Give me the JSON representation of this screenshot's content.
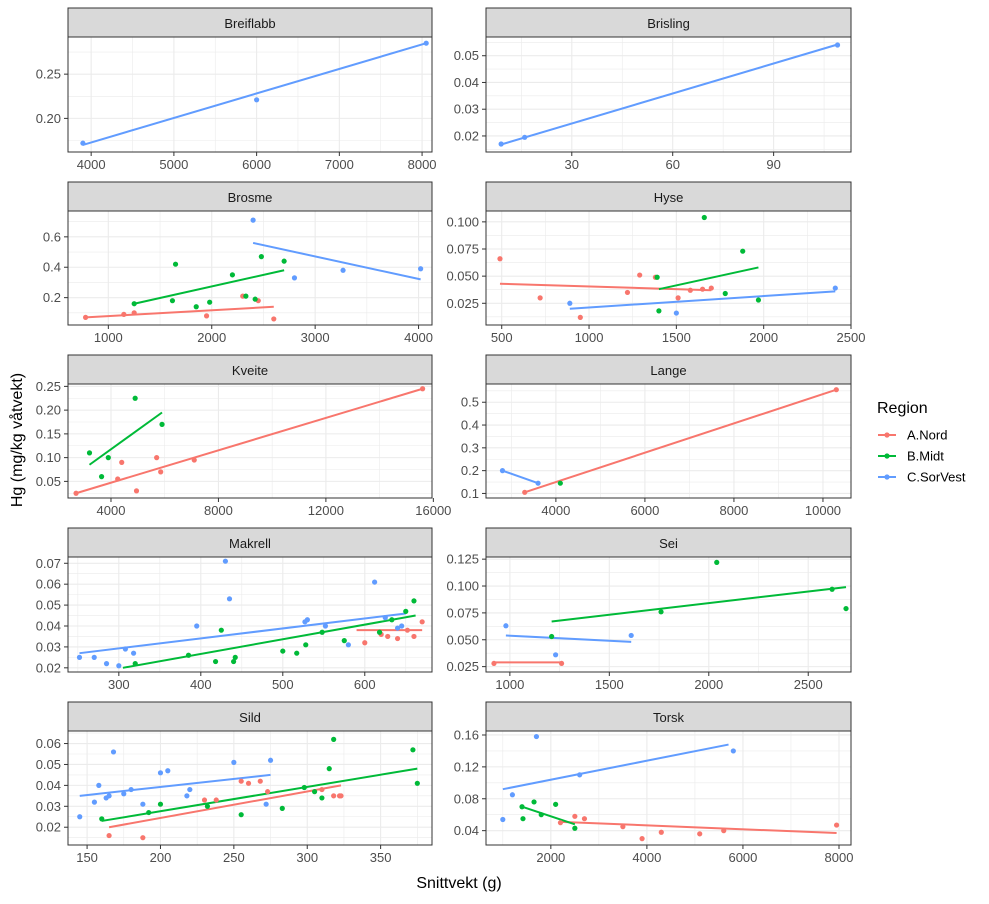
{
  "figure": {
    "xlabel": "Snittvekt (g)",
    "ylabel": "Hg (mg/kg våtvekt)"
  },
  "legend": {
    "title": "Region",
    "items": [
      {
        "label": "A.Nord",
        "color": "#F8766D"
      },
      {
        "label": "B.Midt",
        "color": "#00BA38"
      },
      {
        "label": "C.SorVest",
        "color": "#619CFF"
      }
    ]
  },
  "chart_data": [
    {
      "type": "scatter",
      "title": "Breiflabb",
      "xlim": [
        3720,
        8120
      ],
      "ylim": [
        0.162,
        0.292
      ],
      "xticks": [
        4000,
        5000,
        6000,
        7000,
        8000
      ],
      "yticks": [
        0.2,
        0.25
      ],
      "ytick_labels": [
        "0.20",
        "0.25"
      ],
      "series": [
        {
          "name": "C.SorVest",
          "x": [
            3900,
            6000,
            8050
          ],
          "y": [
            0.172,
            0.221,
            0.285
          ],
          "fit": [
            [
              3900,
              0.17
            ],
            [
              8050,
              0.285
            ]
          ]
        }
      ]
    },
    {
      "type": "scatter",
      "title": "Brisling",
      "xlim": [
        4.5,
        113
      ],
      "ylim": [
        0.014,
        0.057
      ],
      "xticks": [
        30,
        60,
        90
      ],
      "yticks": [
        0.02,
        0.03,
        0.04,
        0.05
      ],
      "ytick_labels": [
        "0.02",
        "0.03",
        "0.04",
        "0.05"
      ],
      "series": [
        {
          "name": "C.SorVest",
          "x": [
            9,
            16,
            109
          ],
          "y": [
            0.017,
            0.0195,
            0.054
          ],
          "fit": [
            [
              9,
              0.0168
            ],
            [
              109,
              0.0542
            ]
          ]
        }
      ]
    },
    {
      "type": "scatter",
      "title": "Brosme",
      "xlim": [
        610,
        4130
      ],
      "ylim": [
        0.02,
        0.77
      ],
      "xticks": [
        1000,
        2000,
        3000,
        4000
      ],
      "yticks": [
        0.2,
        0.4,
        0.6
      ],
      "ytick_labels": [
        "0.2",
        "0.4",
        "0.6"
      ],
      "series": [
        {
          "name": "A.Nord",
          "x": [
            780,
            1150,
            1250,
            1950,
            2300,
            2450,
            2600
          ],
          "y": [
            0.07,
            0.09,
            0.1,
            0.08,
            0.21,
            0.18,
            0.06
          ],
          "fit": [
            [
              780,
              0.07
            ],
            [
              2600,
              0.14
            ]
          ]
        },
        {
          "name": "B.Midt",
          "x": [
            1250,
            1620,
            1650,
            1850,
            1980,
            2200,
            2330,
            2420,
            2480,
            2700
          ],
          "y": [
            0.16,
            0.18,
            0.42,
            0.14,
            0.17,
            0.35,
            0.21,
            0.19,
            0.47,
            0.44
          ],
          "fit": [
            [
              1250,
              0.16
            ],
            [
              2700,
              0.38
            ]
          ]
        },
        {
          "name": "C.SorVest",
          "x": [
            2400,
            2800,
            3270,
            4020
          ],
          "y": [
            0.71,
            0.33,
            0.38,
            0.39
          ],
          "fit": [
            [
              2400,
              0.56
            ],
            [
              4020,
              0.32
            ]
          ]
        }
      ]
    },
    {
      "type": "scatter",
      "title": "Hyse",
      "xlim": [
        410,
        2500
      ],
      "ylim": [
        0.005,
        0.11
      ],
      "xticks": [
        500,
        1000,
        1500,
        2000,
        2500
      ],
      "yticks": [
        0.025,
        0.05,
        0.075,
        0.1
      ],
      "ytick_labels": [
        "0.025",
        "0.050",
        "0.075",
        "0.100"
      ],
      "series": [
        {
          "name": "A.Nord",
          "x": [
            490,
            720,
            950,
            1220,
            1290,
            1380,
            1510,
            1580,
            1650,
            1700
          ],
          "y": [
            0.066,
            0.03,
            0.012,
            0.035,
            0.051,
            0.049,
            0.03,
            0.037,
            0.038,
            0.039
          ],
          "fit": [
            [
              490,
              0.043
            ],
            [
              1700,
              0.037
            ]
          ]
        },
        {
          "name": "B.Midt",
          "x": [
            1390,
            1400,
            1660,
            1780,
            1880,
            1970
          ],
          "y": [
            0.049,
            0.018,
            0.104,
            0.034,
            0.073,
            0.028
          ],
          "fit": [
            [
              1400,
              0.038
            ],
            [
              1970,
              0.058
            ]
          ]
        },
        {
          "name": "C.SorVest",
          "x": [
            890,
            1500,
            2410
          ],
          "y": [
            0.025,
            0.016,
            0.039
          ],
          "fit": [
            [
              890,
              0.02
            ],
            [
              2410,
              0.036
            ]
          ]
        }
      ]
    },
    {
      "type": "scatter",
      "title": "Kveite",
      "xlim": [
        2400,
        15950
      ],
      "ylim": [
        0.015,
        0.255
      ],
      "xticks": [
        4000,
        8000,
        12000,
        16000
      ],
      "yticks": [
        0.05,
        0.1,
        0.15,
        0.2,
        0.25
      ],
      "ytick_labels": [
        "0.05",
        "0.10",
        "0.15",
        "0.20",
        "0.25"
      ],
      "series": [
        {
          "name": "A.Nord",
          "x": [
            2700,
            4250,
            4400,
            4950,
            5700,
            5850,
            7100,
            15600
          ],
          "y": [
            0.025,
            0.055,
            0.09,
            0.03,
            0.1,
            0.07,
            0.095,
            0.245
          ],
          "fit": [
            [
              2700,
              0.025
            ],
            [
              15600,
              0.245
            ]
          ]
        },
        {
          "name": "B.Midt",
          "x": [
            3200,
            3650,
            3900,
            4900,
            5900
          ],
          "y": [
            0.11,
            0.06,
            0.1,
            0.225,
            0.17
          ],
          "fit": [
            [
              3200,
              0.085
            ],
            [
              5900,
              0.195
            ]
          ]
        }
      ]
    },
    {
      "type": "scatter",
      "title": "Lange",
      "xlim": [
        2430,
        10630
      ],
      "ylim": [
        0.08,
        0.58
      ],
      "xticks": [
        4000,
        6000,
        8000,
        10000
      ],
      "yticks": [
        0.1,
        0.2,
        0.3,
        0.4,
        0.5
      ],
      "ytick_labels": [
        "0.1",
        "0.2",
        "0.3",
        "0.4",
        "0.5"
      ],
      "series": [
        {
          "name": "A.Nord",
          "x": [
            3300,
            10300
          ],
          "y": [
            0.105,
            0.555
          ],
          "fit": [
            [
              3300,
              0.105
            ],
            [
              10300,
              0.555
            ]
          ]
        },
        {
          "name": "B.Midt",
          "x": [
            4100
          ],
          "y": [
            0.145
          ],
          "fit": []
        },
        {
          "name": "C.SorVest",
          "x": [
            2800,
            3600
          ],
          "y": [
            0.2,
            0.145
          ],
          "fit": [
            [
              2800,
              0.2
            ],
            [
              3600,
              0.145
            ]
          ]
        }
      ]
    },
    {
      "type": "scatter",
      "title": "Makrell",
      "xlim": [
        238,
        682
      ],
      "ylim": [
        0.018,
        0.073
      ],
      "xticks": [
        300,
        400,
        500,
        600
      ],
      "yticks": [
        0.02,
        0.03,
        0.04,
        0.05,
        0.06,
        0.07
      ],
      "ytick_labels": [
        "0.02",
        "0.03",
        "0.04",
        "0.05",
        "0.06",
        "0.07"
      ],
      "series": [
        {
          "name": "A.Nord",
          "x": [
            600,
            620,
            628,
            640,
            652,
            660,
            670
          ],
          "y": [
            0.032,
            0.036,
            0.035,
            0.034,
            0.038,
            0.035,
            0.042
          ],
          "fit": [
            [
              590,
              0.038
            ],
            [
              670,
              0.038
            ]
          ]
        },
        {
          "name": "B.Midt",
          "x": [
            320,
            385,
            418,
            425,
            440,
            442,
            500,
            517,
            528,
            548,
            575,
            618,
            633,
            650,
            660
          ],
          "y": [
            0.022,
            0.026,
            0.023,
            0.038,
            0.023,
            0.025,
            0.028,
            0.027,
            0.031,
            0.037,
            0.033,
            0.037,
            0.043,
            0.047,
            0.052
          ],
          "fit": [
            [
              305,
              0.02
            ],
            [
              662,
              0.045
            ]
          ]
        },
        {
          "name": "C.SorVest",
          "x": [
            252,
            270,
            285,
            300,
            308,
            318,
            395,
            430,
            435,
            527,
            530,
            552,
            580,
            612,
            625,
            640,
            645
          ],
          "y": [
            0.025,
            0.025,
            0.022,
            0.021,
            0.029,
            0.027,
            0.04,
            0.071,
            0.053,
            0.042,
            0.043,
            0.04,
            0.031,
            0.061,
            0.044,
            0.039,
            0.04
          ],
          "fit": [
            [
              252,
              0.027
            ],
            [
              650,
              0.046
            ]
          ]
        }
      ]
    },
    {
      "type": "scatter",
      "title": "Sei",
      "xlim": [
        880,
        2715
      ],
      "ylim": [
        0.02,
        0.127
      ],
      "xticks": [
        1000,
        1500,
        2000,
        2500
      ],
      "yticks": [
        0.025,
        0.05,
        0.075,
        0.1,
        0.125
      ],
      "ytick_labels": [
        "0.025",
        "0.050",
        "0.075",
        "0.100",
        "0.125"
      ],
      "series": [
        {
          "name": "A.Nord",
          "x": [
            920,
            1260
          ],
          "y": [
            0.028,
            0.028
          ],
          "fit": [
            [
              920,
              0.029
            ],
            [
              1260,
              0.029
            ]
          ]
        },
        {
          "name": "B.Midt",
          "x": [
            1210,
            1760,
            2040,
            2620,
            2690
          ],
          "y": [
            0.053,
            0.076,
            0.122,
            0.097,
            0.079
          ],
          "fit": [
            [
              1210,
              0.067
            ],
            [
              2690,
              0.099
            ]
          ]
        },
        {
          "name": "C.SorVest",
          "x": [
            980,
            1230,
            1610
          ],
          "y": [
            0.063,
            0.036,
            0.054
          ],
          "fit": [
            [
              980,
              0.054
            ],
            [
              1610,
              0.048
            ]
          ]
        }
      ]
    },
    {
      "type": "scatter",
      "title": "Sild",
      "xlim": [
        137,
        385
      ],
      "ylim": [
        0.0115,
        0.066
      ],
      "xticks": [
        150,
        200,
        250,
        300,
        350
      ],
      "yticks": [
        0.02,
        0.03,
        0.04,
        0.05,
        0.06
      ],
      "ytick_labels": [
        "0.02",
        "0.03",
        "0.04",
        "0.05",
        "0.06"
      ],
      "series": [
        {
          "name": "A.Nord",
          "x": [
            165,
            188,
            230,
            238,
            255,
            260,
            268,
            273,
            310,
            318,
            322,
            323
          ],
          "y": [
            0.016,
            0.015,
            0.033,
            0.033,
            0.042,
            0.041,
            0.042,
            0.037,
            0.038,
            0.035,
            0.035,
            0.035
          ],
          "fit": [
            [
              165,
              0.02
            ],
            [
              323,
              0.04
            ]
          ]
        },
        {
          "name": "B.Midt",
          "x": [
            160,
            192,
            200,
            232,
            255,
            283,
            298,
            305,
            310,
            315,
            318,
            372,
            375
          ],
          "y": [
            0.024,
            0.027,
            0.031,
            0.03,
            0.026,
            0.029,
            0.039,
            0.037,
            0.034,
            0.048,
            0.062,
            0.057,
            0.041
          ],
          "fit": [
            [
              160,
              0.023
            ],
            [
              375,
              0.048
            ]
          ]
        },
        {
          "name": "C.SorVest",
          "x": [
            145,
            155,
            158,
            163,
            165,
            168,
            175,
            180,
            188,
            200,
            205,
            218,
            220,
            250,
            272,
            275
          ],
          "y": [
            0.025,
            0.032,
            0.04,
            0.034,
            0.035,
            0.056,
            0.036,
            0.038,
            0.031,
            0.046,
            0.047,
            0.035,
            0.038,
            0.051,
            0.031,
            0.052
          ],
          "fit": [
            [
              145,
              0.035
            ],
            [
              275,
              0.045
            ]
          ]
        }
      ]
    },
    {
      "type": "scatter",
      "title": "Torsk",
      "xlim": [
        650,
        8250
      ],
      "ylim": [
        0.022,
        0.165
      ],
      "xticks": [
        2000,
        4000,
        6000,
        8000
      ],
      "yticks": [
        0.04,
        0.08,
        0.12,
        0.16
      ],
      "ytick_labels": [
        "0.04",
        "0.08",
        "0.12",
        "0.16"
      ],
      "series": [
        {
          "name": "A.Nord",
          "x": [
            2200,
            2500,
            2700,
            3500,
            3900,
            4300,
            5100,
            5600,
            7950
          ],
          "y": [
            0.05,
            0.058,
            0.055,
            0.045,
            0.03,
            0.038,
            0.036,
            0.04,
            0.047
          ],
          "fit": [
            [
              2200,
              0.051
            ],
            [
              7950,
              0.037
            ]
          ]
        },
        {
          "name": "B.Midt",
          "x": [
            1400,
            1420,
            1650,
            1800,
            2100,
            2500
          ],
          "y": [
            0.07,
            0.055,
            0.076,
            0.06,
            0.073,
            0.043
          ],
          "fit": [
            [
              1400,
              0.07
            ],
            [
              2500,
              0.048
            ]
          ]
        },
        {
          "name": "C.SorVest",
          "x": [
            1000,
            1200,
            1700,
            2600,
            5800
          ],
          "y": [
            0.054,
            0.085,
            0.158,
            0.11,
            0.14
          ],
          "fit": [
            [
              1000,
              0.092
            ],
            [
              5700,
              0.148
            ]
          ]
        }
      ]
    }
  ]
}
